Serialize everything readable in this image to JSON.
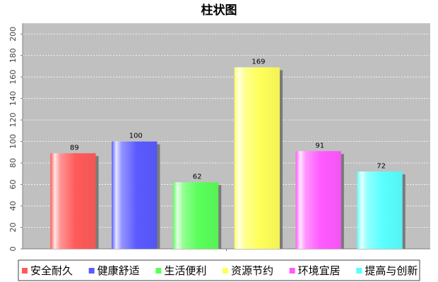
{
  "chart_data": {
    "type": "bar",
    "title": "柱状图",
    "xlabel": "",
    "ylabel": "",
    "categories": [
      "安全耐久",
      "健康舒适",
      "生活便利",
      "资源节约",
      "环境宜居",
      "提高与创新"
    ],
    "values": [
      89,
      100,
      62,
      169,
      91,
      72
    ],
    "colors": [
      "#ff5a5a",
      "#5a5aff",
      "#5aff5a",
      "#ffff5a",
      "#ff5aff",
      "#5affff"
    ],
    "ylim": [
      0,
      210
    ],
    "yticks": [
      0,
      20,
      40,
      60,
      80,
      100,
      120,
      140,
      160,
      180,
      200
    ],
    "grid": true,
    "legend_position": "bottom",
    "plot_background": "#c0c0c0"
  }
}
